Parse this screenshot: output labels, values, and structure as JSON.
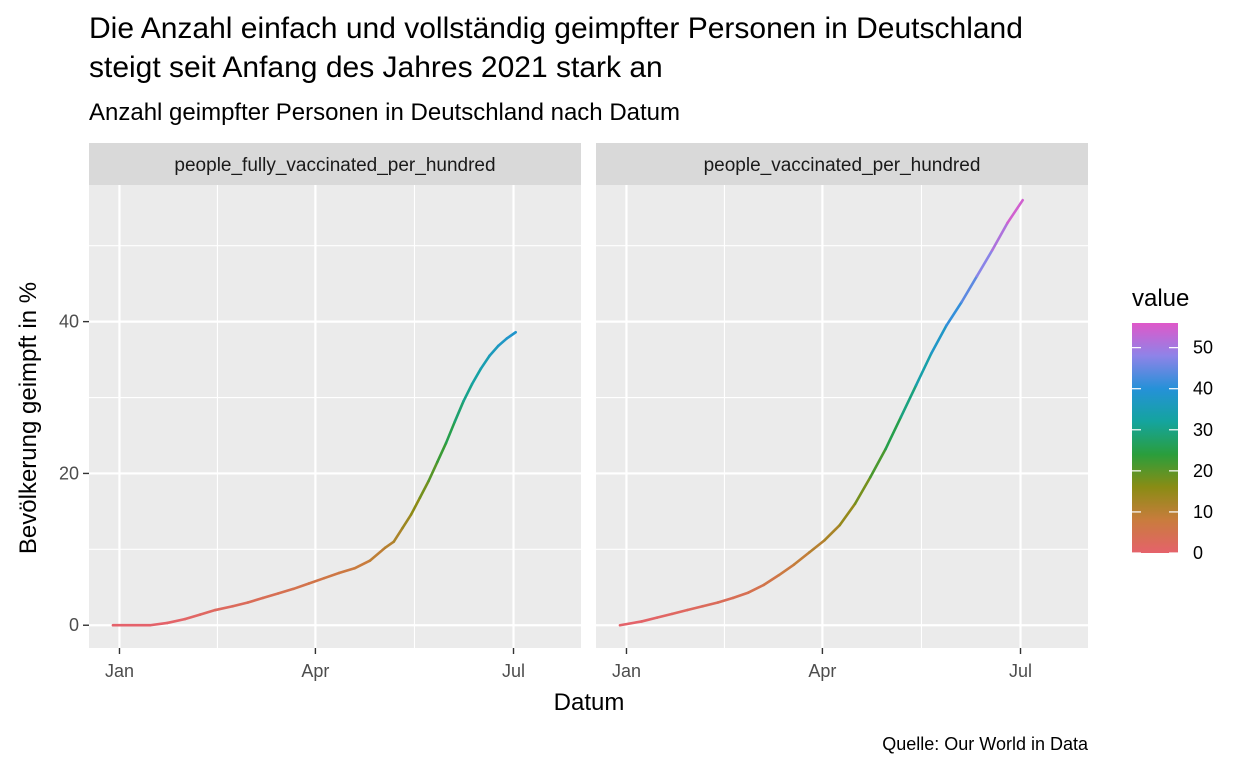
{
  "chart_data": {
    "type": "line",
    "title_lines": [
      "Die Anzahl einfach und vollständig geimpfter Personen in Deutschland",
      "steigt seit Anfang des Jahres 2021 stark an"
    ],
    "subtitle": "Anzahl geimpfter Personen in Deutschland nach Datum",
    "caption": "Quelle: Our World in Data",
    "xlabel": "Datum",
    "ylabel": "Bevölkerung geimpft in %",
    "x_unit": "days since 2021-01-01",
    "xlim": [
      -14,
      212
    ],
    "ylim": [
      -3,
      58
    ],
    "x_ticks": [
      {
        "label": "Jan",
        "value": 0
      },
      {
        "label": "Apr",
        "value": 90
      },
      {
        "label": "Jul",
        "value": 181
      }
    ],
    "y_ticks": [
      0,
      20,
      40
    ],
    "legend": {
      "title": "value",
      "min": 0,
      "max": 56,
      "labels": [
        "0",
        "10",
        "20",
        "30",
        "40",
        "50"
      ],
      "label_values": [
        0,
        10,
        20,
        30,
        40,
        50
      ],
      "colors": [
        "#E5626B",
        "#C97C3D",
        "#8A8C14",
        "#2A9E3C",
        "#14A49E",
        "#2591D8",
        "#8E83E8",
        "#DF58C9"
      ]
    },
    "panels": [
      {
        "strip_label": "people_fully_vaccinated_per_hundred",
        "series_name": "people_fully_vaccinated_per_hundred",
        "x": [
          -3,
          14,
          22,
          30,
          37,
          44,
          52,
          59,
          66,
          73,
          80,
          87,
          94,
          101,
          108,
          115,
          122,
          126,
          130,
          134,
          138,
          142,
          146,
          150,
          154,
          158,
          162,
          166,
          170,
          174,
          178,
          182
        ],
        "y": [
          0,
          0,
          0.3,
          0.8,
          1.4,
          2.0,
          2.5,
          3.0,
          3.6,
          4.2,
          4.8,
          5.5,
          6.2,
          6.9,
          7.5,
          8.5,
          10.2,
          11.0,
          12.8,
          14.6,
          16.8,
          19.0,
          21.5,
          24.0,
          26.8,
          29.5,
          31.8,
          33.8,
          35.5,
          36.8,
          37.8,
          38.6
        ]
      },
      {
        "strip_label": "people_vaccinated_per_hundred",
        "series_name": "people_vaccinated_per_hundred",
        "x": [
          -3,
          7,
          14,
          21,
          28,
          35,
          42,
          49,
          56,
          63,
          70,
          77,
          84,
          91,
          98,
          105,
          112,
          119,
          126,
          133,
          140,
          147,
          154,
          161,
          168,
          175,
          182
        ],
        "y": [
          0,
          0.5,
          1.0,
          1.5,
          2.0,
          2.5,
          3.0,
          3.6,
          4.3,
          5.3,
          6.6,
          8.0,
          9.6,
          11.2,
          13.2,
          16.0,
          19.5,
          23.2,
          27.4,
          31.6,
          35.8,
          39.5,
          42.6,
          46.0,
          49.4,
          53.0,
          56.0
        ]
      }
    ]
  }
}
